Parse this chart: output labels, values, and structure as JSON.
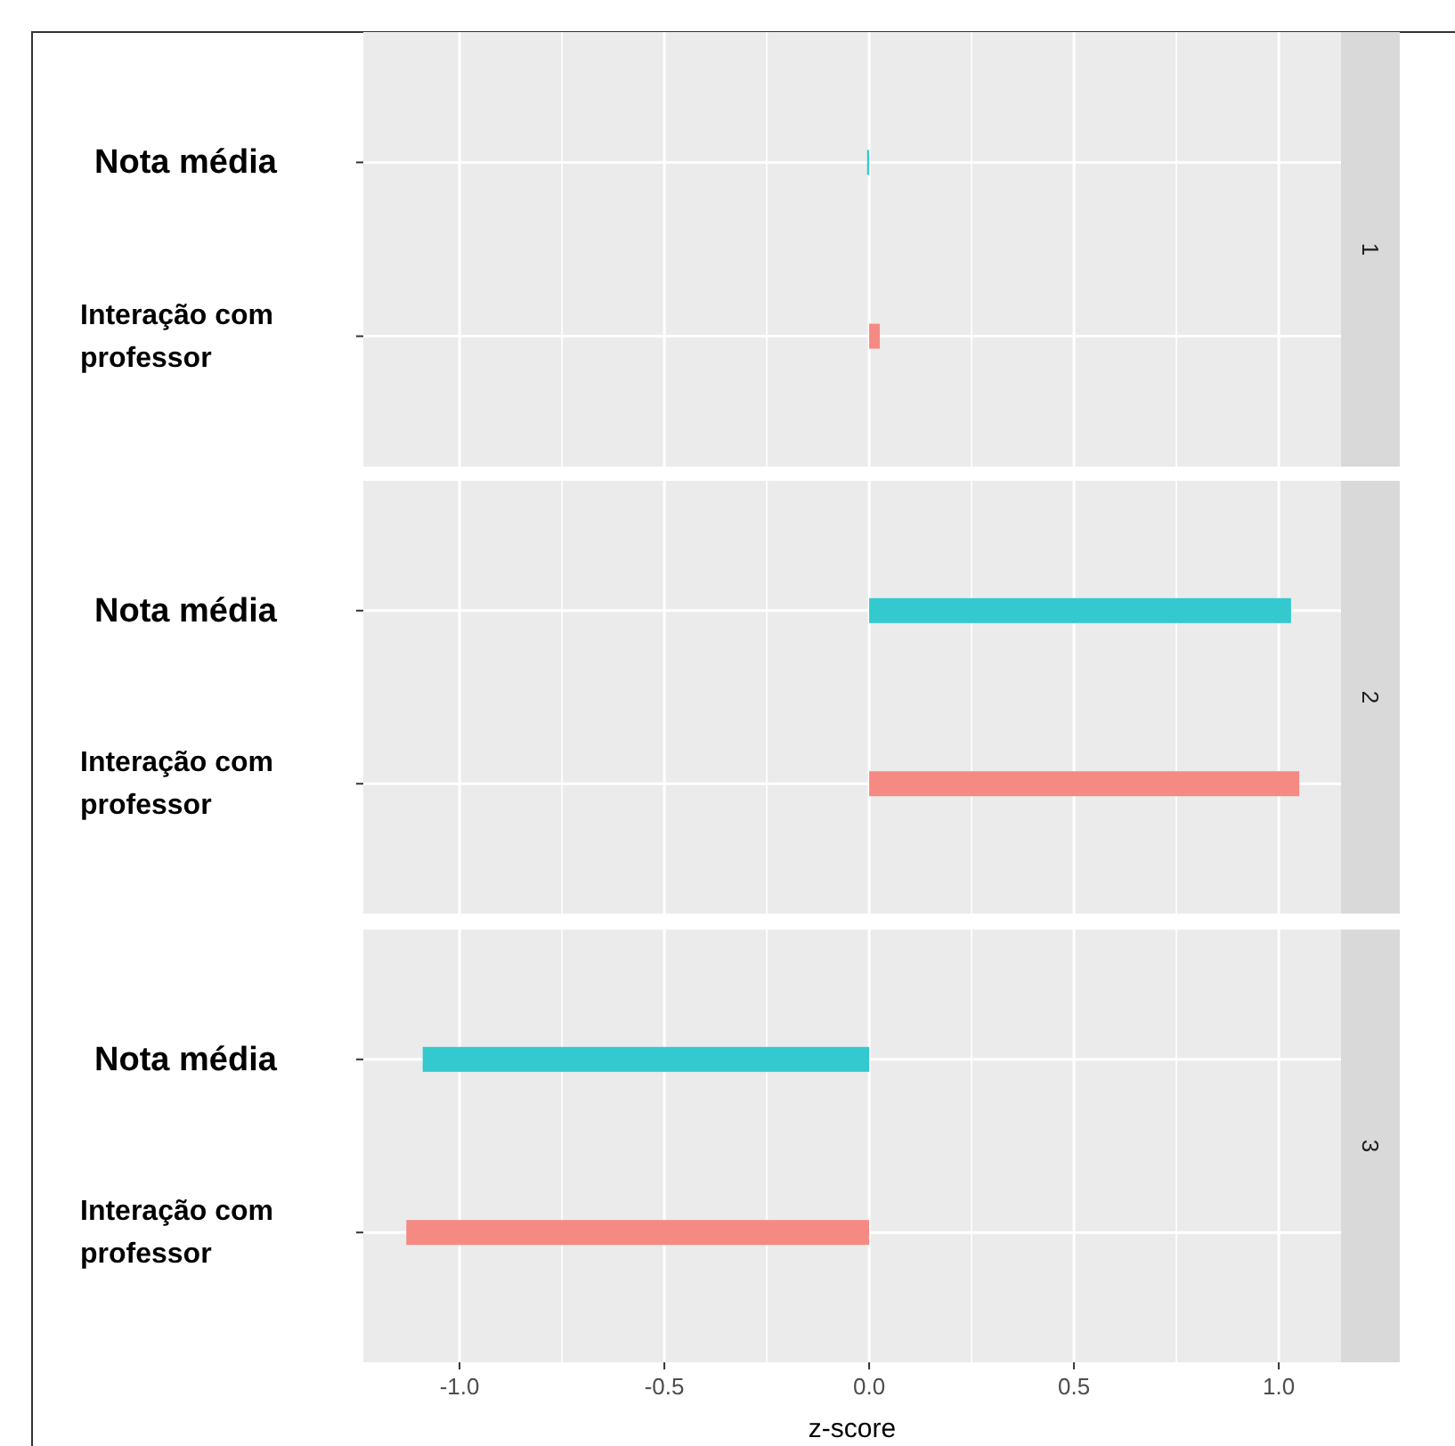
{
  "chart_data": [
    {
      "type": "bar",
      "orientation": "horizontal",
      "annotations": [
        "1"
      ],
      "categories": [
        "Nota média",
        "Interação com professor"
      ],
      "values": [
        -0.005,
        0.026
      ],
      "colors": [
        "#33c9cf",
        "#f58a83"
      ],
      "xlim": [
        -1.235,
        1.152
      ],
      "xticks": [
        {
          "value": -1.0,
          "label": null
        },
        {
          "value": -0.5,
          "label": null
        },
        {
          "value": 0,
          "label": null
        },
        {
          "value": 0.5,
          "label": null
        },
        {
          "value": 1.0,
          "label": null
        }
      ],
      "grid": true,
      "tick_labels": "y"
    },
    {
      "type": "bar",
      "orientation": "horizontal",
      "annotations": [
        "2"
      ],
      "categories": [
        "Nota média",
        "Interação com professor"
      ],
      "values": [
        1.03,
        1.05
      ],
      "colors": [
        "#33c9cf",
        "#f58a83"
      ],
      "xlim": [
        -1.235,
        1.152
      ],
      "xticks": [
        {
          "value": -1.0,
          "label": null
        },
        {
          "value": -0.5,
          "label": null
        },
        {
          "value": 0,
          "label": null
        },
        {
          "value": 0.5,
          "label": null
        },
        {
          "value": 1.0,
          "label": null
        }
      ],
      "grid": true,
      "tick_labels": "y"
    },
    {
      "type": "bar",
      "orientation": "horizontal",
      "annotations": [
        "3"
      ],
      "categories": [
        "Nota média",
        "Interação com professor"
      ],
      "values": [
        -1.09,
        -1.13
      ],
      "colors": [
        "#33c9cf",
        "#f58a83"
      ],
      "xlim": [
        -1.235,
        1.152
      ],
      "xticks": [
        {
          "value": -1.0,
          "label": "-1.0"
        },
        {
          "value": -0.5,
          "label": "-0.5"
        },
        {
          "value": 0,
          "label": "0.0"
        },
        {
          "value": 0.5,
          "label": "0.5"
        },
        {
          "value": 1.0,
          "label": "1.0"
        }
      ],
      "grid": true,
      "xlabel": "z-score"
    }
  ]
}
